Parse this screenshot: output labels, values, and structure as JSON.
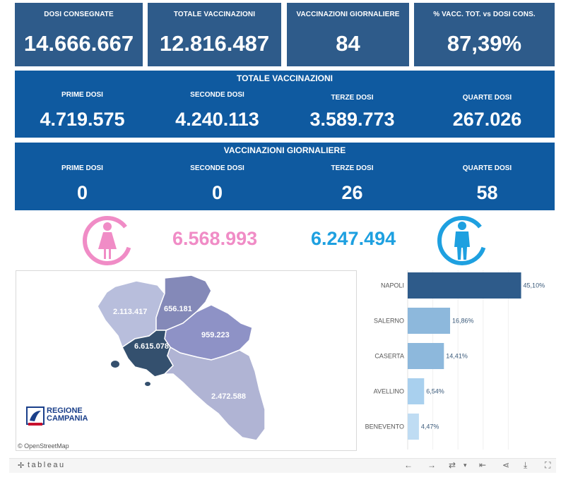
{
  "kpis": [
    {
      "label": "DOSI  CONSEGNATE",
      "value": "14.666.667"
    },
    {
      "label": "TOTALE VACCINAZIONI",
      "value": "12.816.487"
    },
    {
      "label": "VACCINAZIONI GIORNALIERE",
      "value": "84"
    },
    {
      "label": "% VACC. TOT. vs DOSI CONS.",
      "value": "87,39%"
    }
  ],
  "totale": {
    "title": "TOTALE VACCINAZIONI",
    "cols": [
      {
        "label": "PRIME DOSI",
        "value": "4.719.575"
      },
      {
        "label": "SECONDE DOSI",
        "value": "4.240.113"
      },
      {
        "label": "TERZE DOSI",
        "value": "3.589.773"
      },
      {
        "label": "QUARTE DOSI",
        "value": "267.026"
      }
    ]
  },
  "giornaliere": {
    "title": "VACCINAZIONI GIORNALIERE",
    "cols": [
      {
        "label": "PRIME DOSI",
        "value": "0"
      },
      {
        "label": "SECONDE DOSI",
        "value": "0"
      },
      {
        "label": "TERZE DOSI",
        "value": "26"
      },
      {
        "label": "QUARTE DOSI",
        "value": "58"
      }
    ]
  },
  "gender": {
    "female_value": "6.568.993",
    "male_value": "6.247.494",
    "female_color": "#f08cc6",
    "male_color": "#1ea0e0"
  },
  "map": {
    "regions": [
      {
        "name": "Caserta",
        "value": "2.113.417"
      },
      {
        "name": "Benevento",
        "value": "656.181"
      },
      {
        "name": "Avellino",
        "value": "959.223"
      },
      {
        "name": "Napoli",
        "value": "6.615.078"
      },
      {
        "name": "Salerno",
        "value": "2.472.588"
      }
    ],
    "attribution": "© OpenStreetMap",
    "logo_line1": "REGIONE",
    "logo_line2": "CAMPANIA"
  },
  "chart_data": {
    "type": "bar",
    "orientation": "horizontal",
    "categories": [
      "NAPOLI",
      "SALERNO",
      "CASERTA",
      "AVELLINO",
      "BENEVENTO"
    ],
    "values": [
      45.1,
      16.86,
      14.41,
      6.54,
      4.47
    ],
    "labels": [
      "45,10%",
      "16,86%",
      "14,41%",
      "6,54%",
      "4,47%"
    ],
    "xlim": [
      0,
      50
    ],
    "colors": [
      "#2e5b8a",
      "#8db8dc",
      "#8db8dc",
      "#a9d0ee",
      "#bfdcf3"
    ]
  },
  "toolbar": {
    "brand": "tableau",
    "icons": [
      "undo-icon",
      "redo-icon",
      "revert-icon",
      "reset-icon",
      "share-icon",
      "download-icon",
      "fullscreen-icon"
    ]
  }
}
